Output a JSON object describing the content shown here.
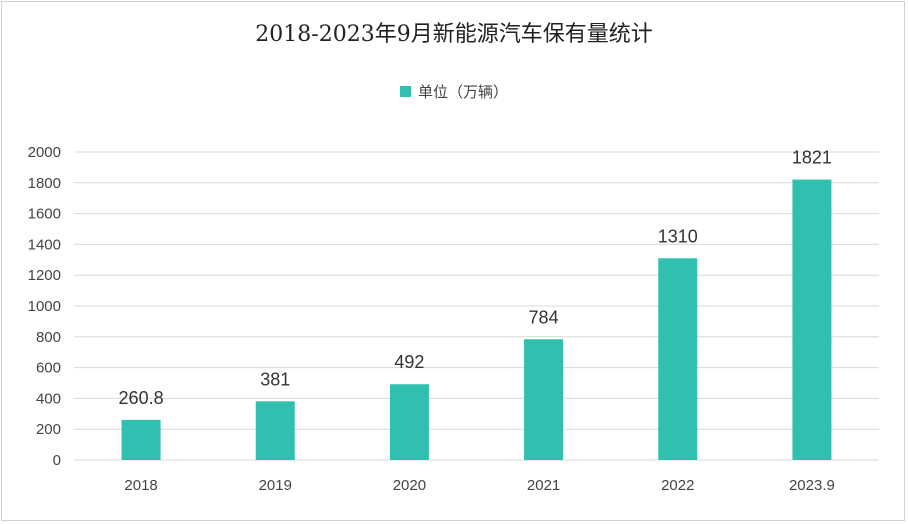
{
  "chart_data": {
    "type": "bar",
    "title": "2018-2023年9月新能源汽车保有量统计",
    "categories": [
      "2018",
      "2019",
      "2020",
      "2021",
      "2022",
      "2023.9"
    ],
    "series": [
      {
        "name": "单位（万辆）",
        "values": [
          260.8,
          381,
          492,
          784,
          1310,
          1821
        ],
        "data_labels": [
          "260.8",
          "381",
          "492",
          "784",
          "1310",
          "1821"
        ]
      }
    ],
    "ylim": [
      0,
      2000
    ],
    "y_ticks": [
      "0",
      "200",
      "400",
      "600",
      "800",
      "1000",
      "1200",
      "1400",
      "1600",
      "1800",
      "2000"
    ],
    "xlabel": "",
    "ylabel": "",
    "grid": true,
    "legend_position": "top",
    "bar_color": "#31bfb0",
    "grid_color": "#d9d9d9"
  }
}
